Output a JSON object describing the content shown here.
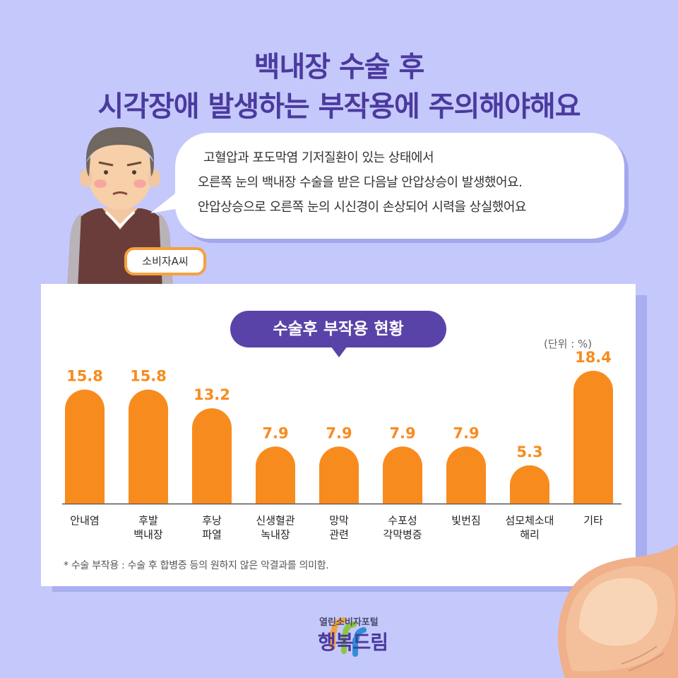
{
  "title": {
    "line1": "백내장 수술 후",
    "line2": "시각장애 발생하는 부작용에 주의해야해요"
  },
  "speech": {
    "line1": "고혈압과 포도막염 기저질환이 있는 상태에서",
    "line2": "오른쪽 눈의 백내장 수술을 받은 다음날 안압상승이 발생했어요.",
    "line3": "안압상승으로 오른쪽 눈의 시신경이 손상되어 시력을 상실했어요",
    "speaker": "소비자A씨"
  },
  "chart_data": {
    "type": "bar",
    "title": "수술후 부작용 현황",
    "unit_label": "(단위 : %)",
    "categories": [
      "안내염",
      "후발\n백내장",
      "후낭\n파열",
      "신생혈관\n녹내장",
      "망막\n관련",
      "수포성\n각막병증",
      "빛번짐",
      "섬모체소대\n해리",
      "기타"
    ],
    "values": [
      15.8,
      15.8,
      13.2,
      7.9,
      7.9,
      7.9,
      7.9,
      5.3,
      18.4
    ],
    "value_labels": [
      "15.8",
      "15.8",
      "13.2",
      "7.9",
      "7.9",
      "7.9",
      "7.9",
      "5.3",
      "18.4"
    ],
    "ylim": [
      0,
      20
    ],
    "bar_color": "#f88b1e",
    "label_color": "#f88b1e"
  },
  "footnote": "* 수술 부작용 : 수술 후 합병증 등의 원하지 않은 악결과를 의미함.",
  "logo": {
    "sub": "열린소비자포털",
    "main": "행복드림"
  },
  "colors": {
    "background": "#c5c8fb",
    "title": "#4b3a9e",
    "pill": "#5a43a8",
    "accent": "#f88b1e"
  }
}
